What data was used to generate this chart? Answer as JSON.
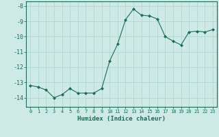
{
  "x": [
    0,
    1,
    2,
    3,
    4,
    5,
    6,
    7,
    8,
    9,
    10,
    11,
    12,
    13,
    14,
    15,
    16,
    17,
    18,
    19,
    20,
    21,
    22,
    23
  ],
  "y": [
    -13.2,
    -13.3,
    -13.5,
    -14.0,
    -13.8,
    -13.4,
    -13.7,
    -13.7,
    -13.7,
    -13.4,
    -11.6,
    -10.5,
    -8.9,
    -8.2,
    -8.6,
    -8.65,
    -8.85,
    -10.0,
    -10.3,
    -10.55,
    -9.7,
    -9.65,
    -9.7,
    -9.55
  ],
  "xlim": [
    -0.5,
    23.5
  ],
  "ylim": [
    -14.6,
    -7.7
  ],
  "yticks": [
    -8,
    -9,
    -10,
    -11,
    -12,
    -13,
    -14
  ],
  "xticks": [
    0,
    1,
    2,
    3,
    4,
    5,
    6,
    7,
    8,
    9,
    10,
    11,
    12,
    13,
    14,
    15,
    16,
    17,
    18,
    19,
    20,
    21,
    22,
    23
  ],
  "xlabel": "Humidex (Indice chaleur)",
  "line_color": "#1a6b5a",
  "marker": "D",
  "marker_size": 2.0,
  "bg_color": "#cdeae5",
  "grid_color": "#b0d8d2",
  "tick_color": "#1a6b5a",
  "label_color": "#1a6b5a",
  "font_family": "monospace",
  "tick_fontsize": 5.0,
  "ytick_fontsize": 6.0,
  "xlabel_fontsize": 6.5
}
